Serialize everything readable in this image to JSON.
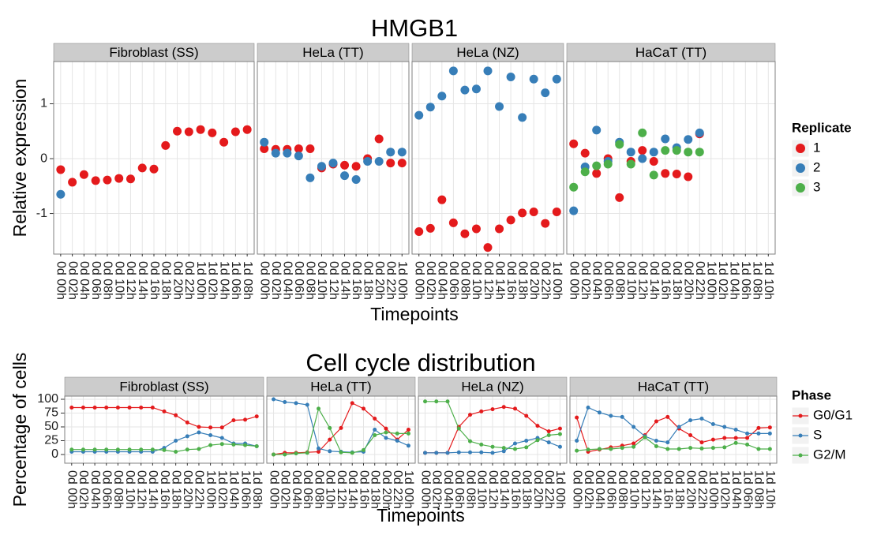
{
  "chart_data": [
    {
      "type": "scatter",
      "title": "HMGB1",
      "x_label": "Timepoints",
      "y_label": "Relative expression",
      "ylim": [
        -1.74,
        1.77
      ],
      "yticks": [
        -1,
        0,
        1
      ],
      "grid": true,
      "legend_title": "Replicate",
      "series": [
        {
          "name": "1",
          "color": "#e41a1c"
        },
        {
          "name": "2",
          "color": "#377eb8"
        },
        {
          "name": "3",
          "color": "#4daf4a"
        }
      ],
      "facets": [
        {
          "title": "Fibroblast (SS)",
          "categories": [
            "0d 00h",
            "0d 02h",
            "0d 04h",
            "0d 06h",
            "0d 08h",
            "0d 10h",
            "0d 12h",
            "0d 14h",
            "0d 16h",
            "0d 18h",
            "0d 20h",
            "0d 22h",
            "1d 00h",
            "1d 02h",
            "1d 04h",
            "1d 06h",
            "1d 08h"
          ],
          "values": [
            [
              -0.2,
              -0.43,
              -0.29,
              -0.4,
              -0.39,
              -0.36,
              -0.37,
              -0.17,
              -0.19,
              0.24,
              0.5,
              0.49,
              0.53,
              0.47,
              0.3,
              0.49,
              0.53
            ],
            [
              -0.65,
              null,
              null,
              null,
              null,
              null,
              null,
              null,
              null,
              null,
              null,
              null,
              null,
              null,
              null,
              null,
              null
            ],
            [
              null,
              null,
              null,
              null,
              null,
              null,
              null,
              null,
              null,
              null,
              null,
              null,
              null,
              null,
              null,
              null,
              null
            ]
          ]
        },
        {
          "title": "HeLa (TT)",
          "categories": [
            "0d 00h",
            "0d 02h",
            "0d 04h",
            "0d 06h",
            "0d 08h",
            "0d 10h",
            "0d 12h",
            "0d 14h",
            "0d 16h",
            "0d 18h",
            "0d 20h",
            "0d 22h",
            "1d 00h"
          ],
          "values": [
            [
              0.18,
              0.17,
              0.17,
              0.18,
              0.18,
              -0.17,
              -0.1,
              -0.12,
              -0.14,
              0.0,
              0.36,
              -0.08,
              -0.08
            ],
            [
              0.3,
              0.1,
              0.1,
              0.05,
              -0.35,
              -0.14,
              -0.08,
              -0.31,
              -0.38,
              -0.05,
              -0.05,
              0.12,
              0.12
            ],
            [
              null,
              null,
              null,
              null,
              null,
              null,
              null,
              null,
              null,
              null,
              null,
              null,
              null
            ]
          ]
        },
        {
          "title": "HeLa (NZ)",
          "categories": [
            "0d 00h",
            "0d 02h",
            "0d 04h",
            "0d 06h",
            "0d 08h",
            "0d 10h",
            "0d 12h",
            "0d 14h",
            "0d 16h",
            "0d 18h",
            "0d 20h",
            "0d 22h",
            "1d 00h"
          ],
          "values": [
            [
              -1.33,
              -1.27,
              -0.75,
              -1.17,
              -1.37,
              -1.28,
              -1.62,
              -1.28,
              -1.12,
              -0.99,
              -0.97,
              -1.18,
              -0.97
            ],
            [
              0.79,
              0.94,
              1.14,
              1.6,
              1.25,
              1.27,
              1.6,
              0.95,
              1.49,
              0.75,
              1.45,
              1.2,
              1.45
            ],
            [
              null,
              null,
              null,
              null,
              null,
              null,
              null,
              null,
              null,
              null,
              null,
              null,
              null
            ]
          ]
        },
        {
          "title": "HaCaT (TT)",
          "categories": [
            "0d 00h",
            "0d 02h",
            "0d 04h",
            "0d 06h",
            "0d 08h",
            "0d 10h",
            "0d 12h",
            "0d 14h",
            "0d 16h",
            "0d 18h",
            "0d 20h",
            "0d 22h",
            "1d 00h",
            "1d 02h",
            "1d 04h",
            "1d 06h",
            "1d 08h",
            "1d 10h"
          ],
          "values": [
            [
              0.27,
              0.1,
              -0.27,
              0.0,
              -0.71,
              -0.05,
              0.15,
              -0.05,
              -0.27,
              -0.28,
              -0.33,
              0.45,
              null,
              null,
              null,
              null,
              null,
              null
            ],
            [
              -0.95,
              -0.15,
              0.52,
              -0.05,
              0.3,
              0.12,
              0.0,
              0.12,
              0.36,
              0.2,
              0.35,
              0.47,
              null,
              null,
              null,
              null,
              null,
              null
            ],
            [
              -0.52,
              -0.24,
              -0.13,
              -0.1,
              0.26,
              -0.1,
              0.47,
              -0.3,
              0.15,
              0.15,
              0.12,
              0.12,
              null,
              null,
              null,
              null,
              null,
              null
            ]
          ]
        }
      ]
    },
    {
      "type": "line",
      "title": "Cell cycle distribution",
      "x_label": "Timepoints",
      "y_label": "Percentage of cells",
      "ylim": [
        -15.7,
        105.7
      ],
      "yticks": [
        0,
        25,
        50,
        75,
        100
      ],
      "grid": true,
      "legend_title": "Phase",
      "series": [
        {
          "name": "G0/G1",
          "color": "#e41a1c"
        },
        {
          "name": "S",
          "color": "#377eb8"
        },
        {
          "name": "G2/M",
          "color": "#4daf4a"
        }
      ],
      "facets": [
        {
          "title": "Fibroblast (SS)",
          "categories": [
            "0d 00h",
            "0d 02h",
            "0d 04h",
            "0d 06h",
            "0d 08h",
            "0d 10h",
            "0d 12h",
            "0d 14h",
            "0d 16h",
            "0d 18h",
            "0d 20h",
            "0d 22h",
            "1d 00h",
            "1d 02h",
            "1d 04h",
            "1d 06h",
            "1d 08h"
          ],
          "values": [
            [
              85,
              85,
              85,
              85,
              85,
              85,
              85,
              85,
              78,
              71,
              58,
              50,
              49,
              49,
              62,
              63,
              69
            ],
            [
              5,
              5,
              5,
              5,
              5,
              5,
              5,
              5,
              12,
              25,
              33,
              40,
              35,
              30,
              20,
              20,
              15
            ],
            [
              9,
              9,
              9,
              9,
              9,
              9,
              9,
              9,
              8,
              5,
              9,
              10,
              17,
              19,
              18,
              17,
              15
            ]
          ]
        },
        {
          "title": "HeLa (TT)",
          "categories": [
            "0d 00h",
            "0d 02h",
            "0d 04h",
            "0d 06h",
            "0d 08h",
            "0d 10h",
            "0d 12h",
            "0d 14h",
            "0d 16h",
            "0d 18h",
            "0d 20h",
            "0d 22h",
            "1d 00h"
          ],
          "values": [
            [
              0,
              3,
              3,
              4,
              5,
              27,
              48,
              93,
              83,
              65,
              47,
              27,
              45
            ],
            [
              100,
              95,
              93,
              90,
              11,
              6,
              5,
              4,
              5,
              45,
              30,
              25,
              16
            ],
            [
              0,
              0,
              2,
              3,
              83,
              48,
              4,
              3,
              8,
              35,
              40,
              38,
              38
            ]
          ]
        },
        {
          "title": "HeLa (NZ)",
          "categories": [
            "0d 00h",
            "0d 02h",
            "0d 04h",
            "0d 06h",
            "0d 08h",
            "0d 10h",
            "0d 12h",
            "0d 14h",
            "0d 16h",
            "0d 18h",
            "0d 20h",
            "0d 22h",
            "1d 00h"
          ],
          "values": [
            [
              3,
              3,
              3,
              50,
              72,
              78,
              82,
              86,
              83,
              70,
              52,
              42,
              47
            ],
            [
              3,
              3,
              3,
              4,
              4,
              4,
              3,
              6,
              20,
              25,
              30,
              22,
              14
            ],
            [
              96,
              96,
              96,
              47,
              24,
              18,
              14,
              12,
              10,
              13,
              26,
              35,
              37
            ]
          ]
        },
        {
          "title": "HaCaT (TT)",
          "categories": [
            "0d 00h",
            "0d 02h",
            "0d 04h",
            "0d 06h",
            "0d 08h",
            "0d 10h",
            "0d 12h",
            "0d 14h",
            "0d 16h",
            "0d 18h",
            "0d 20h",
            "0d 22h",
            "1d 00h",
            "1d 02h",
            "1d 04h",
            "1d 06h",
            "1d 08h",
            "1d 10h"
          ],
          "values": [
            [
              67,
              5,
              9,
              13,
              16,
              20,
              35,
              60,
              68,
              47,
              35,
              22,
              27,
              30,
              30,
              30,
              48,
              49
            ],
            [
              25,
              85,
              76,
              70,
              68,
              50,
              33,
              25,
              22,
              50,
              62,
              65,
              55,
              50,
              45,
              38,
              38,
              38
            ],
            [
              7,
              9,
              10,
              10,
              12,
              14,
              31,
              15,
              10,
              10,
              12,
              11,
              12,
              13,
              21,
              18,
              10,
              10
            ]
          ]
        }
      ]
    }
  ]
}
